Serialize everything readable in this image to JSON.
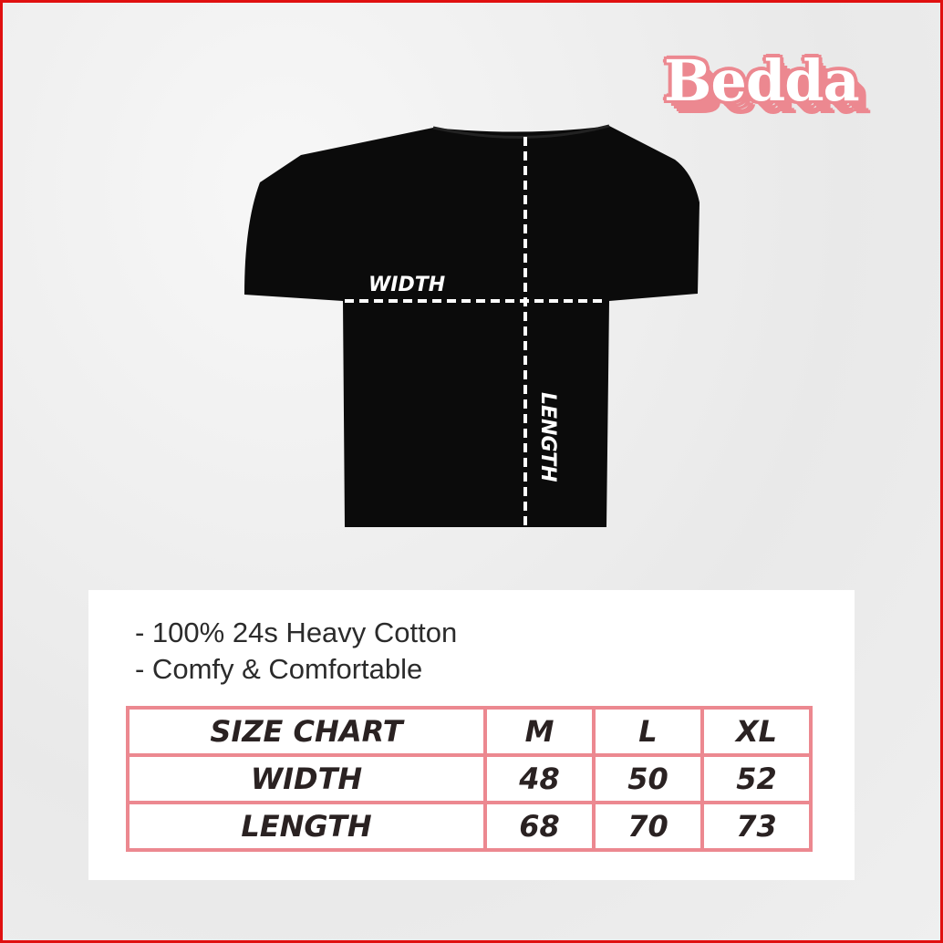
{
  "brand": {
    "logo_text": "Bedda",
    "accent_color": "#ec8890"
  },
  "diagram": {
    "width_label": "WIDTH",
    "length_label": "LENGTH"
  },
  "features": [
    "- 100% 24s Heavy Cotton",
    "- Comfy & Comfortable"
  ],
  "size_chart": {
    "header": [
      "SIZE CHART",
      "M",
      "L",
      "XL"
    ],
    "rows": [
      {
        "label": "WIDTH",
        "values": [
          "48",
          "50",
          "52"
        ]
      },
      {
        "label": "LENGTH",
        "values": [
          "68",
          "70",
          "73"
        ]
      }
    ]
  }
}
